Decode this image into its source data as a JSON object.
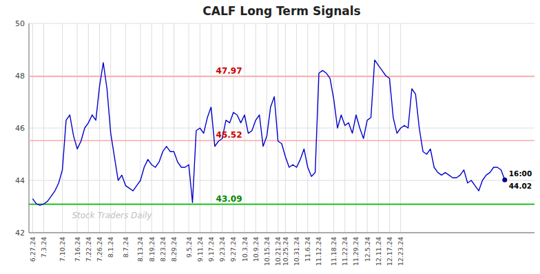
{
  "chart_data": {
    "type": "line",
    "title": "CALF Long Term Signals",
    "color": "#0000cc",
    "grid": true,
    "ylim": [
      42,
      50
    ],
    "yticks": [
      42,
      44,
      46,
      48,
      50
    ],
    "categories": [
      "6.27.24",
      null,
      null,
      "7.3.24",
      null,
      null,
      null,
      null,
      "7.10.24",
      null,
      null,
      null,
      "7.16.24",
      null,
      null,
      "7.22.24",
      null,
      null,
      "7.26.24",
      null,
      null,
      "8.1.24",
      null,
      null,
      null,
      "8.7.24",
      null,
      null,
      null,
      "8.13.24",
      null,
      null,
      "8.19.24",
      null,
      null,
      "8.23.24",
      null,
      null,
      "8.29.24",
      null,
      null,
      null,
      "9.5.24",
      null,
      null,
      "9.11.24",
      null,
      null,
      "9.17.24",
      null,
      null,
      "9.23.24",
      null,
      null,
      "9.27.24",
      null,
      null,
      "10.3.24",
      null,
      null,
      "10.9.24",
      null,
      null,
      "10.15.24",
      null,
      null,
      "10.21.24",
      null,
      "10.25.24",
      null,
      null,
      "10.31.24",
      null,
      null,
      "11.6.24",
      null,
      null,
      "11.12.24",
      null,
      null,
      null,
      "11.18.24",
      null,
      null,
      "11.22.24",
      null,
      null,
      "11.29.24",
      null,
      null,
      "12.5.24",
      null,
      null,
      "12.11.24",
      null,
      null,
      "12.17.24",
      null,
      null,
      "12.23.24",
      null,
      null,
      null,
      null,
      null,
      null,
      null,
      null,
      null,
      null,
      null,
      null,
      null,
      null,
      null,
      null,
      null,
      null,
      null,
      null,
      null,
      null,
      null,
      null,
      null,
      null,
      null,
      null
    ],
    "values": [
      43.3,
      43.1,
      43.05,
      43.1,
      43.2,
      43.4,
      43.6,
      43.9,
      44.4,
      46.3,
      46.5,
      45.7,
      45.2,
      45.5,
      46.0,
      46.2,
      46.5,
      46.3,
      47.6,
      48.5,
      47.5,
      45.8,
      44.9,
      44.0,
      44.2,
      43.8,
      43.7,
      43.6,
      43.8,
      44.0,
      44.5,
      44.8,
      44.6,
      44.5,
      44.7,
      45.1,
      45.3,
      45.1,
      45.1,
      44.7,
      44.5,
      44.5,
      44.6,
      43.15,
      45.9,
      46.0,
      45.8,
      46.4,
      46.8,
      45.3,
      45.5,
      45.6,
      46.3,
      46.2,
      46.6,
      46.5,
      46.2,
      46.5,
      45.8,
      45.9,
      46.3,
      46.5,
      45.3,
      45.7,
      46.8,
      47.2,
      45.5,
      45.4,
      44.9,
      44.5,
      44.6,
      44.5,
      44.8,
      45.2,
      44.5,
      44.15,
      44.3,
      48.1,
      48.2,
      48.1,
      47.9,
      47.1,
      46.0,
      46.5,
      46.1,
      46.2,
      45.8,
      46.5,
      46.0,
      45.6,
      46.3,
      46.4,
      48.6,
      48.4,
      48.2,
      48.0,
      47.9,
      46.4,
      45.8,
      46.0,
      46.1,
      46.0,
      47.5,
      47.3,
      46.0,
      45.1,
      45.0,
      45.2,
      44.5,
      44.3,
      44.2,
      44.3,
      44.2,
      44.1,
      44.1,
      44.2,
      44.4,
      43.9,
      44.0,
      43.8,
      43.6,
      44.0,
      44.2,
      44.3,
      44.5,
      44.5,
      44.4,
      44.02
    ],
    "reference_lines": [
      {
        "value": 43.09,
        "label": "43.09",
        "color": "#00bb00",
        "label_color": "#008800"
      },
      {
        "value": 47.97,
        "label": "47.97",
        "color": "#ffaaaa",
        "label_color": "#cc0000"
      },
      {
        "value": 45.52,
        "label": "45.52",
        "color": "#ffaaaa",
        "label_color": "#cc0000"
      }
    ],
    "last_point": {
      "time": "16:00",
      "value": 44.02,
      "color": "#000088"
    },
    "watermark": "Stock Traders Daily"
  }
}
